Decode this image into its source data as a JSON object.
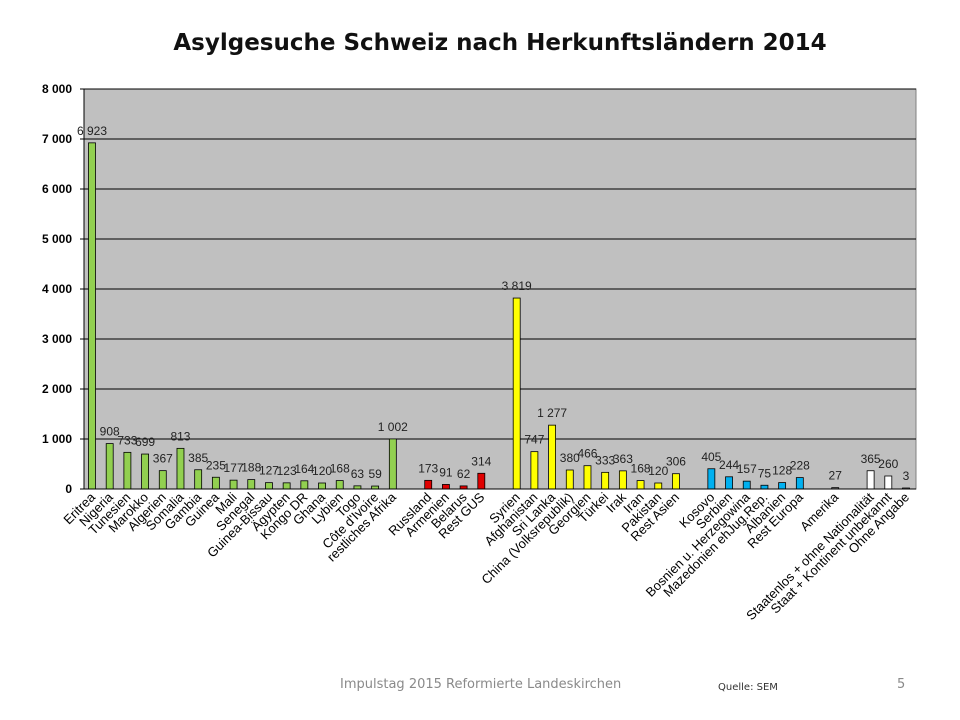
{
  "chart_data": {
    "type": "bar",
    "title": "Asylgesuche Schweiz nach Herkunftsländern 2014",
    "xlabel": "",
    "ylabel": "",
    "ylim": [
      0,
      8000
    ],
    "yticks": [
      {
        "value": 0,
        "label": "0"
      },
      {
        "value": 1000,
        "label": "1 000"
      },
      {
        "value": 2000,
        "label": "2 000"
      },
      {
        "value": 3000,
        "label": "3 000"
      },
      {
        "value": 4000,
        "label": "4 000"
      },
      {
        "value": 5000,
        "label": "5 000"
      },
      {
        "value": 6000,
        "label": "6 000"
      },
      {
        "value": 7000,
        "label": "7 000"
      },
      {
        "value": 8000,
        "label": "8 000"
      }
    ],
    "grid": true,
    "legend": "none",
    "colors": {
      "Afrika": "#92d050",
      "GUS": "#e00000",
      "Asien": "#ffff00",
      "Europa": "#00b0f0",
      "Amerika": "#7f7f7f",
      "Sonstige": "#ffffff",
      "plot_background": "#c0c0c0"
    },
    "bars": [
      {
        "category": "Eritrea",
        "value": 6923,
        "label": "6 923",
        "group": "Afrika"
      },
      {
        "category": "Nigeria",
        "value": 908,
        "label": "908",
        "group": "Afrika"
      },
      {
        "category": "Tunesien",
        "value": 733,
        "label": "733",
        "group": "Afrika"
      },
      {
        "category": "Marokko",
        "value": 699,
        "label": "699",
        "group": "Afrika"
      },
      {
        "category": "Algerien",
        "value": 367,
        "label": "367",
        "group": "Afrika"
      },
      {
        "category": "Somalia",
        "value": 813,
        "label": "813",
        "group": "Afrika"
      },
      {
        "category": "Gambia",
        "value": 385,
        "label": "385",
        "group": "Afrika"
      },
      {
        "category": "Guinea",
        "value": 235,
        "label": "235",
        "group": "Afrika"
      },
      {
        "category": "Mali",
        "value": 177,
        "label": "177",
        "group": "Afrika"
      },
      {
        "category": "Senegal",
        "value": 188,
        "label": "188",
        "group": "Afrika"
      },
      {
        "category": "Guinea-Bissau",
        "value": 127,
        "label": "127",
        "group": "Afrika"
      },
      {
        "category": "Ägypten",
        "value": 123,
        "label": "123",
        "group": "Afrika"
      },
      {
        "category": "Kongo DR",
        "value": 164,
        "label": "164",
        "group": "Afrika"
      },
      {
        "category": "Ghana",
        "value": 120,
        "label": "120",
        "group": "Afrika"
      },
      {
        "category": "Lybien",
        "value": 168,
        "label": "168",
        "group": "Afrika"
      },
      {
        "category": "Togo",
        "value": 63,
        "label": "63",
        "group": "Afrika"
      },
      {
        "category": "Côte d'Ivoire",
        "value": 59,
        "label": "59",
        "group": "Afrika"
      },
      {
        "category": "restliches Afrika",
        "value": 1002,
        "label": "1 002",
        "group": "Afrika"
      },
      {
        "category": "Russland",
        "value": 173,
        "label": "173",
        "group": "GUS"
      },
      {
        "category": "Armenien",
        "value": 91,
        "label": "91",
        "group": "GUS"
      },
      {
        "category": "Belarus",
        "value": 62,
        "label": "62",
        "group": "GUS"
      },
      {
        "category": "Rest GUS",
        "value": 314,
        "label": "314",
        "group": "GUS"
      },
      {
        "category": "Syrien",
        "value": 3819,
        "label": "3 819",
        "group": "Asien"
      },
      {
        "category": "Afghanistan",
        "value": 747,
        "label": "747",
        "group": "Asien"
      },
      {
        "category": "Sri Lanka",
        "value": 1277,
        "label": "1 277",
        "group": "Asien"
      },
      {
        "category": "China (Volksrepublik)",
        "value": 380,
        "label": "380",
        "group": "Asien"
      },
      {
        "category": "Georgien",
        "value": 466,
        "label": "466",
        "group": "Asien"
      },
      {
        "category": "Türkei",
        "value": 333,
        "label": "333",
        "group": "Asien"
      },
      {
        "category": "Irak",
        "value": 363,
        "label": "363",
        "group": "Asien"
      },
      {
        "category": "Iran",
        "value": 168,
        "label": "168",
        "group": "Asien"
      },
      {
        "category": "Pakistan",
        "value": 120,
        "label": "120",
        "group": "Asien"
      },
      {
        "category": "Rest Asien",
        "value": 306,
        "label": "306",
        "group": "Asien"
      },
      {
        "category": "Kosovo",
        "value": 405,
        "label": "405",
        "group": "Europa"
      },
      {
        "category": "Serbien",
        "value": 244,
        "label": "244",
        "group": "Europa"
      },
      {
        "category": "Bosnien u. Herzegowina",
        "value": 157,
        "label": "157",
        "group": "Europa"
      },
      {
        "category": "Mazedonien ehJug.Rep.",
        "value": 75,
        "label": "75",
        "group": "Europa"
      },
      {
        "category": "Albanien",
        "value": 128,
        "label": "128",
        "group": "Europa"
      },
      {
        "category": "Rest Europa",
        "value": 228,
        "label": "228",
        "group": "Europa"
      },
      {
        "category": "Amerika",
        "value": 27,
        "label": "27",
        "group": "Amerika"
      },
      {
        "category": "Staatenlos + ohne Nationalität",
        "value": 365,
        "label": "365",
        "group": "Sonstige"
      },
      {
        "category": "Staat + Kontinent unbekannt",
        "value": 260,
        "label": "260",
        "group": "Sonstige"
      },
      {
        "category": "Ohne Angabe",
        "value": 3,
        "label": "3",
        "group": "Sonstige"
      }
    ]
  },
  "footer": {
    "text": "Impulstag 2015 Reformierte Landeskirchen",
    "source": "Quelle: SEM",
    "page_number": "5"
  }
}
